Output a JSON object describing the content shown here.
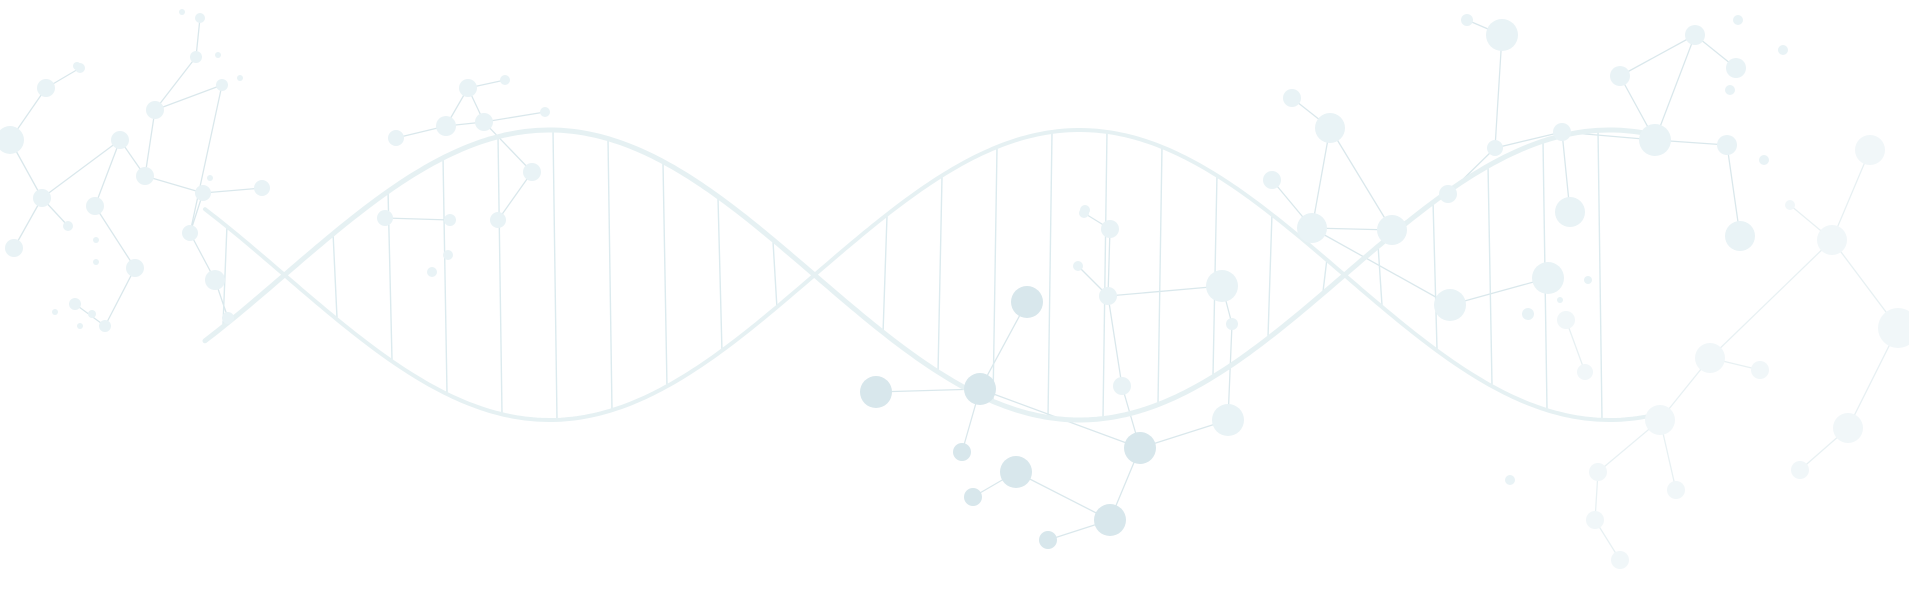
{
  "colors": {
    "background": "#ffffff",
    "helix_strand": "#e6f1f3",
    "base_pair_rung": "#dcebef",
    "molecule_node": "#d8e7ec",
    "molecule_node_light": "#e9f3f6",
    "molecule_node_faint": "#f1f7f9",
    "molecule_bond": "#d7e6eb"
  },
  "icons": {
    "helix": "dna-double-helix-illustration",
    "molecules": "molecular-structure-network-illustration"
  }
}
